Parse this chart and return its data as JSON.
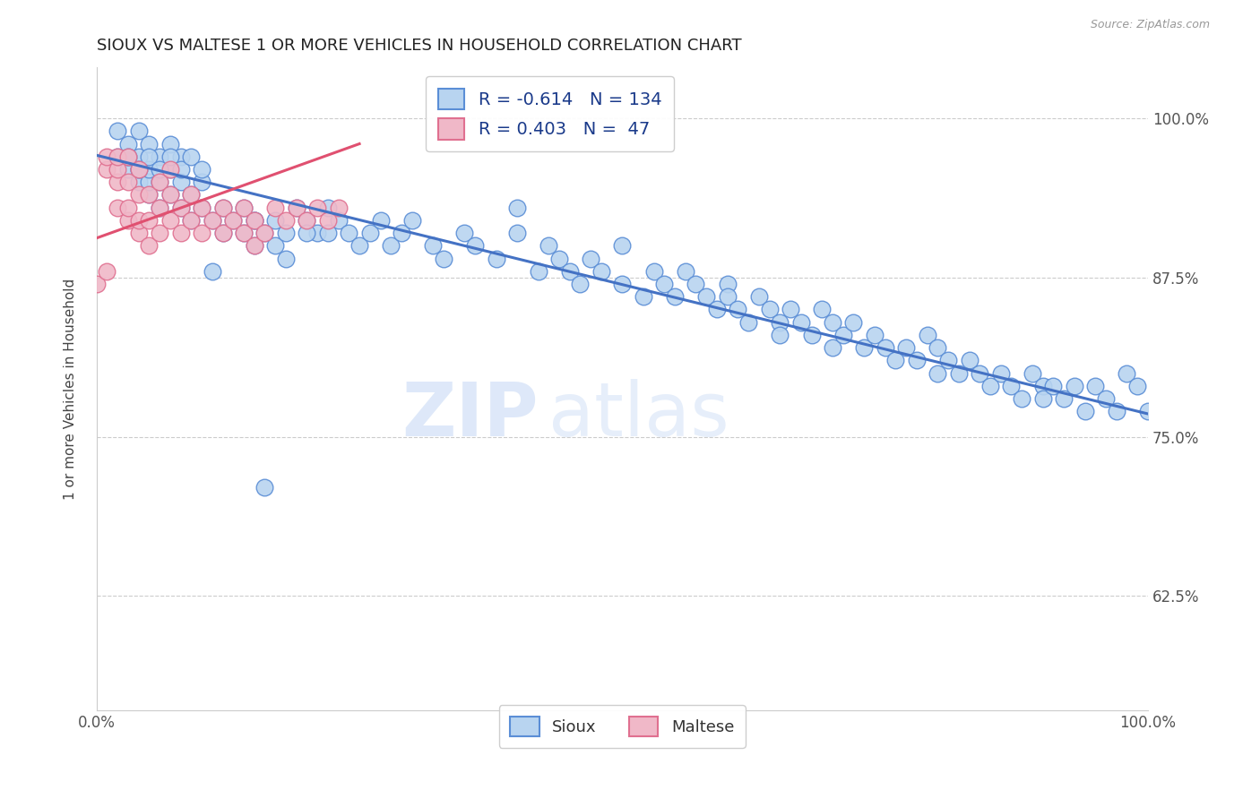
{
  "title": "SIOUX VS MALTESE 1 OR MORE VEHICLES IN HOUSEHOLD CORRELATION CHART",
  "source": "Source: ZipAtlas.com",
  "ylabel": "1 or more Vehicles in Household",
  "xlim": [
    0.0,
    1.0
  ],
  "ylim": [
    0.535,
    1.04
  ],
  "yticks": [
    0.625,
    0.75,
    0.875,
    1.0
  ],
  "ytick_labels": [
    "62.5%",
    "75.0%",
    "87.5%",
    "100.0%"
  ],
  "legend_r_sioux": "-0.614",
  "legend_n_sioux": "134",
  "legend_r_maltese": "0.403",
  "legend_n_maltese": "47",
  "sioux_color": "#b8d4f0",
  "maltese_color": "#f0b8c8",
  "sioux_edge_color": "#5b8ed6",
  "maltese_edge_color": "#e07090",
  "sioux_line_color": "#4472c4",
  "maltese_line_color": "#e05070",
  "watermark": "ZIPatlas",
  "watermark_color": "#c8daf5",
  "sioux_line_x0": 0.0,
  "sioux_line_y0": 0.971,
  "sioux_line_x1": 1.0,
  "sioux_line_y1": 0.768,
  "maltese_line_x0": 0.0,
  "maltese_line_y0": 0.906,
  "maltese_line_x1": 0.25,
  "maltese_line_y1": 0.98,
  "sioux_x": [
    0.02,
    0.02,
    0.03,
    0.03,
    0.03,
    0.04,
    0.04,
    0.04,
    0.04,
    0.05,
    0.05,
    0.05,
    0.05,
    0.06,
    0.06,
    0.06,
    0.07,
    0.07,
    0.07,
    0.08,
    0.08,
    0.08,
    0.09,
    0.09,
    0.1,
    0.1,
    0.11,
    0.12,
    0.12,
    0.13,
    0.14,
    0.14,
    0.15,
    0.15,
    0.16,
    0.17,
    0.17,
    0.18,
    0.19,
    0.2,
    0.21,
    0.22,
    0.23,
    0.24,
    0.25,
    0.26,
    0.27,
    0.28,
    0.29,
    0.3,
    0.32,
    0.33,
    0.35,
    0.36,
    0.38,
    0.4,
    0.4,
    0.42,
    0.43,
    0.44,
    0.45,
    0.46,
    0.47,
    0.48,
    0.5,
    0.5,
    0.52,
    0.53,
    0.54,
    0.55,
    0.56,
    0.57,
    0.58,
    0.59,
    0.6,
    0.6,
    0.61,
    0.62,
    0.63,
    0.64,
    0.65,
    0.65,
    0.66,
    0.67,
    0.68,
    0.69,
    0.7,
    0.7,
    0.71,
    0.72,
    0.73,
    0.74,
    0.75,
    0.76,
    0.77,
    0.78,
    0.79,
    0.8,
    0.8,
    0.81,
    0.82,
    0.83,
    0.84,
    0.85,
    0.86,
    0.87,
    0.88,
    0.89,
    0.9,
    0.9,
    0.91,
    0.92,
    0.93,
    0.94,
    0.95,
    0.96,
    0.97,
    0.98,
    0.99,
    1.0,
    0.03,
    0.04,
    0.05,
    0.06,
    0.07,
    0.08,
    0.09,
    0.1,
    0.22,
    0.15,
    0.16,
    0.18,
    0.2,
    0.11
  ],
  "sioux_y": [
    0.97,
    0.99,
    0.96,
    0.97,
    0.98,
    0.95,
    0.96,
    0.97,
    0.99,
    0.94,
    0.95,
    0.96,
    0.98,
    0.93,
    0.95,
    0.97,
    0.94,
    0.96,
    0.98,
    0.93,
    0.95,
    0.97,
    0.92,
    0.94,
    0.93,
    0.95,
    0.92,
    0.91,
    0.93,
    0.92,
    0.91,
    0.93,
    0.9,
    0.92,
    0.91,
    0.9,
    0.92,
    0.91,
    0.93,
    0.92,
    0.91,
    0.93,
    0.92,
    0.91,
    0.9,
    0.91,
    0.92,
    0.9,
    0.91,
    0.92,
    0.9,
    0.89,
    0.91,
    0.9,
    0.89,
    0.91,
    0.93,
    0.88,
    0.9,
    0.89,
    0.88,
    0.87,
    0.89,
    0.88,
    0.87,
    0.9,
    0.86,
    0.88,
    0.87,
    0.86,
    0.88,
    0.87,
    0.86,
    0.85,
    0.87,
    0.86,
    0.85,
    0.84,
    0.86,
    0.85,
    0.84,
    0.83,
    0.85,
    0.84,
    0.83,
    0.85,
    0.84,
    0.82,
    0.83,
    0.84,
    0.82,
    0.83,
    0.82,
    0.81,
    0.82,
    0.81,
    0.83,
    0.8,
    0.82,
    0.81,
    0.8,
    0.81,
    0.8,
    0.79,
    0.8,
    0.79,
    0.78,
    0.8,
    0.79,
    0.78,
    0.79,
    0.78,
    0.79,
    0.77,
    0.79,
    0.78,
    0.77,
    0.8,
    0.79,
    0.77,
    0.97,
    0.96,
    0.97,
    0.96,
    0.97,
    0.96,
    0.97,
    0.96,
    0.91,
    0.92,
    0.71,
    0.89,
    0.91,
    0.88
  ],
  "maltese_x": [
    0.01,
    0.01,
    0.02,
    0.02,
    0.02,
    0.02,
    0.03,
    0.03,
    0.03,
    0.03,
    0.04,
    0.04,
    0.04,
    0.04,
    0.05,
    0.05,
    0.05,
    0.06,
    0.06,
    0.06,
    0.07,
    0.07,
    0.07,
    0.08,
    0.08,
    0.09,
    0.09,
    0.1,
    0.1,
    0.11,
    0.12,
    0.12,
    0.13,
    0.14,
    0.14,
    0.15,
    0.15,
    0.16,
    0.17,
    0.18,
    0.19,
    0.2,
    0.21,
    0.22,
    0.23,
    0.0,
    0.01
  ],
  "maltese_y": [
    0.96,
    0.97,
    0.93,
    0.95,
    0.96,
    0.97,
    0.92,
    0.93,
    0.95,
    0.97,
    0.91,
    0.92,
    0.94,
    0.96,
    0.9,
    0.92,
    0.94,
    0.91,
    0.93,
    0.95,
    0.92,
    0.94,
    0.96,
    0.91,
    0.93,
    0.92,
    0.94,
    0.91,
    0.93,
    0.92,
    0.91,
    0.93,
    0.92,
    0.91,
    0.93,
    0.9,
    0.92,
    0.91,
    0.93,
    0.92,
    0.93,
    0.92,
    0.93,
    0.92,
    0.93,
    0.87,
    0.88
  ]
}
